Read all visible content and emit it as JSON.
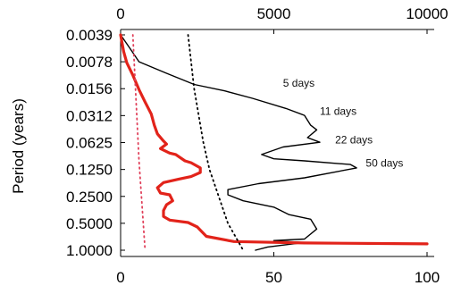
{
  "chart_data": {
    "type": "line",
    "ylabel": "Period (years)",
    "y_scale": "log2",
    "y_ticks": [
      "0.0039",
      "0.0078",
      "0.0156",
      "0.0312",
      "0.0625",
      "0.1250",
      "0.2500",
      "0.5000",
      "1.0000"
    ],
    "y_tick_values": [
      0.0039,
      0.0078,
      0.0156,
      0.0312,
      0.0625,
      0.125,
      0.25,
      0.5,
      1.0
    ],
    "ylim": [
      0.0039,
      1.0
    ],
    "x_bottom": {
      "range": [
        0,
        100
      ],
      "ticks": [
        0,
        50,
        100
      ],
      "tick_labels": [
        "0",
        "50",
        "100"
      ]
    },
    "x_top": {
      "range": [
        0,
        10000
      ],
      "ticks": [
        0,
        5000,
        10000
      ],
      "tick_labels": [
        "0",
        "5000",
        "10000"
      ]
    },
    "grid": false,
    "colors": {
      "black_series": "#000000",
      "red_series": "#e2231a",
      "red_dotted": "#e0405a",
      "black_dotted": "#000000"
    },
    "series": [
      {
        "axis": "top",
        "color": "#000000",
        "style": "solid",
        "points": [
          [
            0,
            0.0039
          ],
          [
            300,
            0.0055
          ],
          [
            600,
            0.0078
          ],
          [
            1500,
            0.0105
          ],
          [
            2400,
            0.014
          ],
          [
            3400,
            0.0165
          ],
          [
            4300,
            0.02
          ],
          [
            5400,
            0.026
          ],
          [
            6000,
            0.031
          ],
          [
            6200,
            0.04
          ],
          [
            6400,
            0.045
          ],
          [
            6100,
            0.055
          ],
          [
            6500,
            0.062
          ],
          [
            5300,
            0.07
          ],
          [
            4600,
            0.085
          ],
          [
            5000,
            0.095
          ],
          [
            6000,
            0.1
          ],
          [
            7500,
            0.11
          ],
          [
            7700,
            0.12
          ],
          [
            6000,
            0.155
          ],
          [
            4500,
            0.18
          ],
          [
            3500,
            0.21
          ],
          [
            3500,
            0.24
          ],
          [
            4000,
            0.28
          ],
          [
            5000,
            0.33
          ],
          [
            5500,
            0.4
          ],
          [
            6200,
            0.45
          ],
          [
            6400,
            0.58
          ],
          [
            6000,
            0.75
          ],
          [
            5000,
            0.78
          ],
          [
            6000,
            0.82
          ],
          [
            5500,
            0.86
          ],
          [
            4800,
            0.92
          ],
          [
            4400,
            1.0
          ]
        ]
      },
      {
        "axis": "bottom",
        "color": "#e2231a",
        "style": "solid",
        "points": [
          [
            0,
            0.0039
          ],
          [
            1,
            0.006
          ],
          [
            2,
            0.008
          ],
          [
            4,
            0.011
          ],
          [
            6,
            0.016
          ],
          [
            8,
            0.022
          ],
          [
            10,
            0.03
          ],
          [
            11,
            0.04
          ],
          [
            12,
            0.05
          ],
          [
            14,
            0.06
          ],
          [
            15,
            0.065
          ],
          [
            13,
            0.073
          ],
          [
            16,
            0.082
          ],
          [
            18,
            0.085
          ],
          [
            21,
            0.1
          ],
          [
            23,
            0.105
          ],
          [
            26,
            0.12
          ],
          [
            26,
            0.135
          ],
          [
            23,
            0.15
          ],
          [
            19,
            0.16
          ],
          [
            14,
            0.175
          ],
          [
            12,
            0.2
          ],
          [
            13,
            0.23
          ],
          [
            16,
            0.24
          ],
          [
            17,
            0.28
          ],
          [
            15,
            0.31
          ],
          [
            14,
            0.36
          ],
          [
            14,
            0.42
          ],
          [
            16,
            0.46
          ],
          [
            22,
            0.49
          ],
          [
            25,
            0.55
          ],
          [
            28,
            0.7
          ],
          [
            37,
            0.8
          ],
          [
            60,
            0.83
          ],
          [
            100,
            0.85
          ]
        ]
      },
      {
        "axis": "bottom",
        "color": "#e0405a",
        "style": "dotted",
        "points": [
          [
            4,
            0.0039
          ],
          [
            6,
            0.1
          ],
          [
            8,
            1.0
          ]
        ]
      },
      {
        "axis": "bottom",
        "color": "#000000",
        "style": "dotted",
        "points": [
          [
            22,
            0.0039
          ],
          [
            24,
            0.0156
          ],
          [
            27,
            0.0625
          ],
          [
            29,
            0.125
          ],
          [
            32,
            0.25
          ],
          [
            35,
            0.5
          ],
          [
            40,
            1.0
          ]
        ]
      }
    ],
    "annotations": [
      {
        "text": "5 days",
        "x": 5300,
        "y": 0.0135,
        "axis": "top"
      },
      {
        "text": "11 days",
        "x": 6500,
        "y": 0.028,
        "axis": "top"
      },
      {
        "text": "22 days",
        "x": 7000,
        "y": 0.058,
        "axis": "top"
      },
      {
        "text": "50 days",
        "x": 8000,
        "y": 0.106,
        "axis": "top"
      }
    ]
  }
}
